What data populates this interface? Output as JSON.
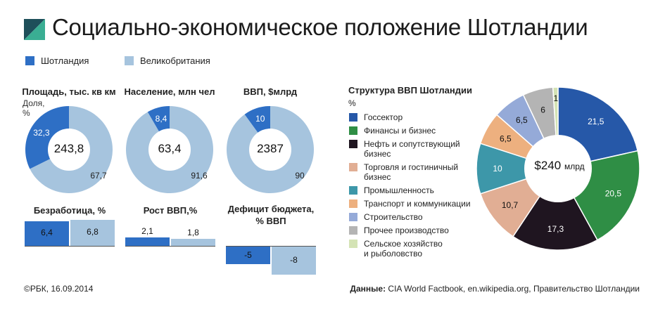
{
  "title": "Социально-экономическое положение Шотландии",
  "colors": {
    "scotland": "#2E6FC5",
    "uk": "#A6C4DE",
    "logo_dark": "#1E4F5A",
    "logo_light": "#3AAE93"
  },
  "legend": {
    "scotland": "Шотландия",
    "uk": "Великобритания"
  },
  "donuts": [
    {
      "title": "Площадь, тыс. кв км",
      "center": "243,8",
      "share_label": "Доля,\n%",
      "scotland": 32.3,
      "uk": 67.7,
      "scotland_label": "32,3",
      "uk_label": "67,7"
    },
    {
      "title": "Население, млн чел",
      "center": "63,4",
      "scotland": 8.4,
      "uk": 91.6,
      "scotland_label": "8,4",
      "uk_label": "91,6"
    },
    {
      "title": "ВВП, $млрд",
      "center": "2387",
      "scotland": 10,
      "uk": 90,
      "scotland_label": "10",
      "uk_label": "90"
    }
  ],
  "bars": [
    {
      "title": "Безработица, %",
      "scotland": 6.4,
      "uk": 6.8,
      "scotland_label": "6,4",
      "uk_label": "6,8"
    },
    {
      "title": "Рост ВВП,%",
      "scotland": 2.1,
      "uk": 1.8,
      "scotland_label": "2,1",
      "uk_label": "1,8"
    },
    {
      "title": "Дефицит бюджета,\n% ВВП",
      "scotland": -5,
      "uk": -8,
      "scotland_label": "-5",
      "uk_label": "-8"
    }
  ],
  "chart_data": {
    "type": "pie",
    "title": "Структура ВВП Шотландии",
    "unit": "%",
    "center_label": "$240",
    "center_unit": "млрд",
    "slices": [
      {
        "name": "Госсектор",
        "value": 21.5,
        "label": "21,5",
        "color": "#2658A8"
      },
      {
        "name": "Финансы и бизнес",
        "value": 20.5,
        "label": "20,5",
        "color": "#2F8E45"
      },
      {
        "name": "Нефть и сопутствующий бизнес",
        "value": 17.3,
        "label": "17,3",
        "color": "#1F1520"
      },
      {
        "name": "Торговля и гостиничный бизнес",
        "value": 10.7,
        "label": "10,7",
        "color": "#E1AE94"
      },
      {
        "name": "Промышленность",
        "value": 10,
        "label": "10",
        "color": "#3D97A9"
      },
      {
        "name": "Транспорт и коммуникации",
        "value": 6.5,
        "label": "6,5",
        "color": "#EDB07F"
      },
      {
        "name": "Строительство",
        "value": 6.5,
        "label": "6,5",
        "color": "#95AAD8"
      },
      {
        "name": "Прочее производство",
        "value": 6,
        "label": "6",
        "color": "#B4B4B4"
      },
      {
        "name": "Сельское хозяйство\nи рыболовство",
        "value": 1,
        "label": "1",
        "color": "#D4E3B5"
      }
    ]
  },
  "footer": {
    "left": "©РБК, 16.09.2014",
    "source_label": "Данные:",
    "source_text": "CIA World Factbook, en.wikipedia.org, Правительство Шотландии"
  }
}
